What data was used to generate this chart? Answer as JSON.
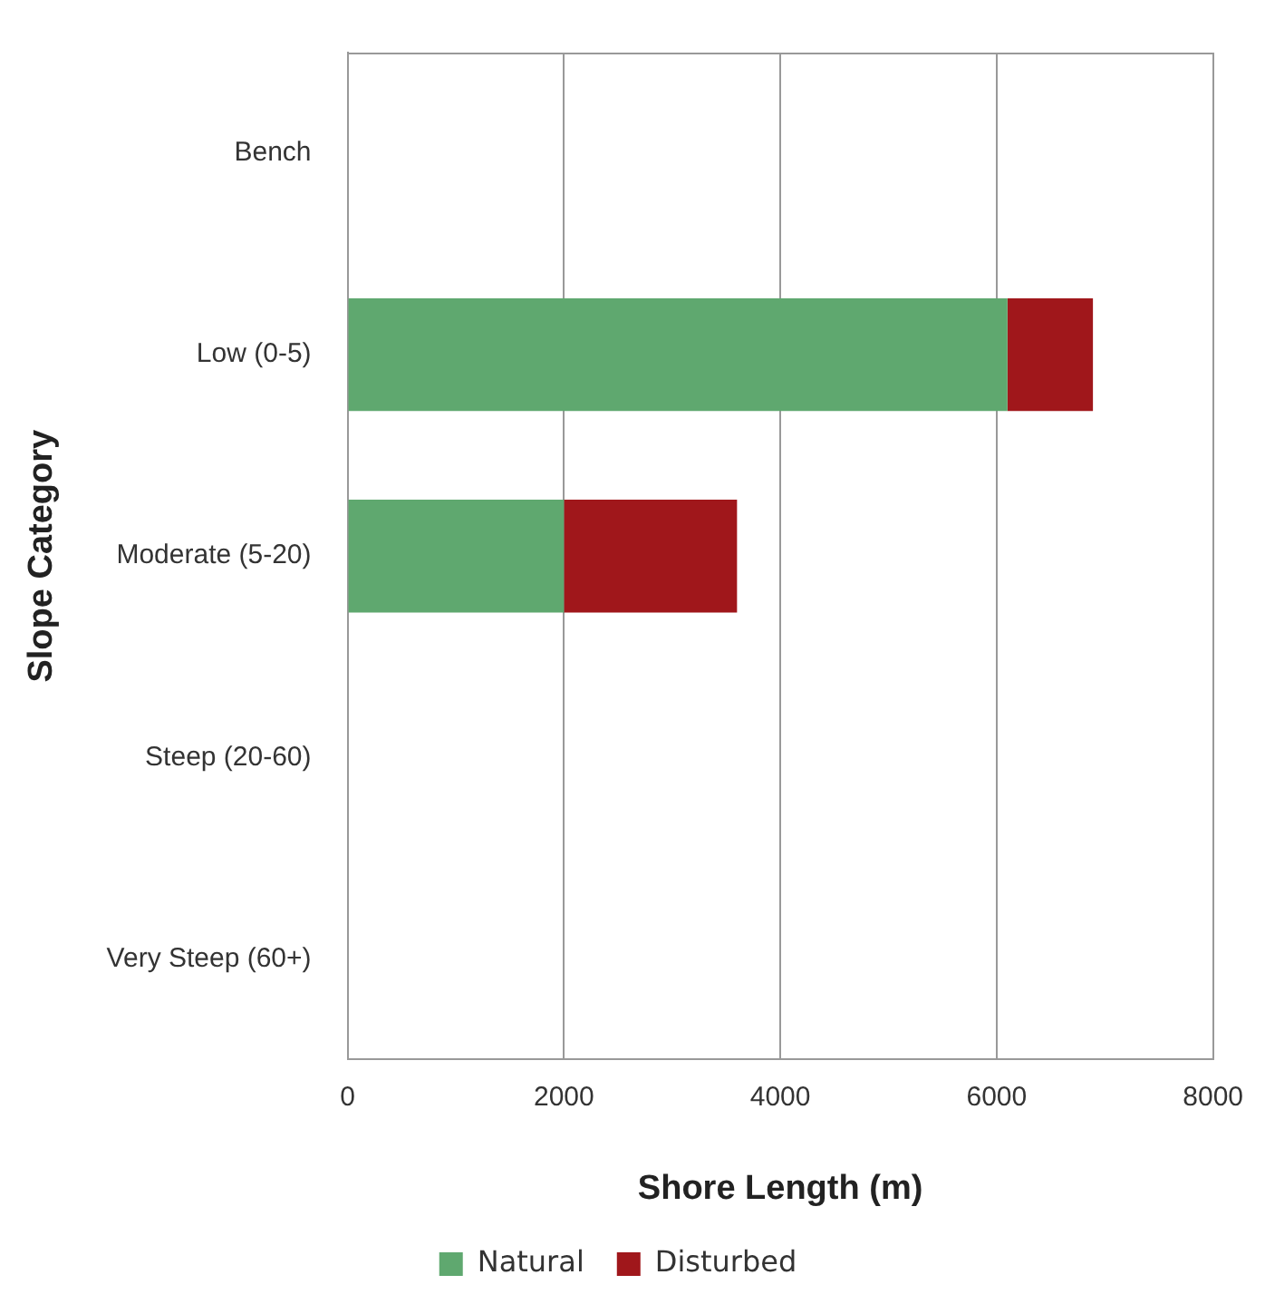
{
  "chart_data": {
    "type": "bar",
    "orientation": "horizontal",
    "stacked": true,
    "xlabel": "Shore Length (m)",
    "ylabel": "Slope Category",
    "categories": [
      "Bench",
      "Low (0-5)",
      "Moderate (5-20)",
      "Steep (20-60)",
      "Very Steep (60+)"
    ],
    "series": [
      {
        "name": "Natural",
        "color": "#5fa86f",
        "values": [
          0,
          6100,
          2000,
          0,
          0
        ]
      },
      {
        "name": "Disturbed",
        "color": "#a0171b",
        "values": [
          0,
          790,
          1600,
          0,
          0
        ]
      }
    ],
    "xlim": [
      0,
      8000
    ],
    "xticks": [
      0,
      2000,
      4000,
      6000,
      8000
    ],
    "grid": "x",
    "legend": "bottom"
  }
}
